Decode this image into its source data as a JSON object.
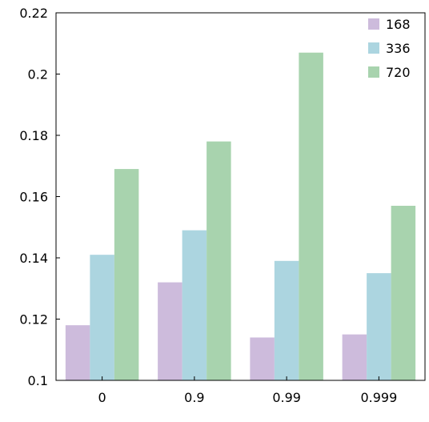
{
  "chart_data": {
    "type": "bar",
    "title": "",
    "xlabel": "",
    "ylabel": "",
    "categories": [
      "0",
      "0.9",
      "0.99",
      "0.999"
    ],
    "series": [
      {
        "name": "168",
        "color": "#cdbbdc",
        "values": [
          0.118,
          0.132,
          0.114,
          0.115
        ]
      },
      {
        "name": "336",
        "color": "#acd5e0",
        "values": [
          0.141,
          0.149,
          0.139,
          0.135
        ]
      },
      {
        "name": "720",
        "color": "#a8d3ae",
        "values": [
          0.169,
          0.178,
          0.207,
          0.157
        ]
      }
    ],
    "ylim": [
      0.1,
      0.22
    ],
    "yticks": [
      0.1,
      0.12,
      0.14,
      0.16,
      0.18,
      0.2,
      0.22
    ],
    "ytick_labels": [
      "0.1",
      "0.12",
      "0.14",
      "0.16",
      "0.18",
      "0.2",
      "0.22"
    ],
    "grid": false,
    "legend_position": "top-right"
  }
}
